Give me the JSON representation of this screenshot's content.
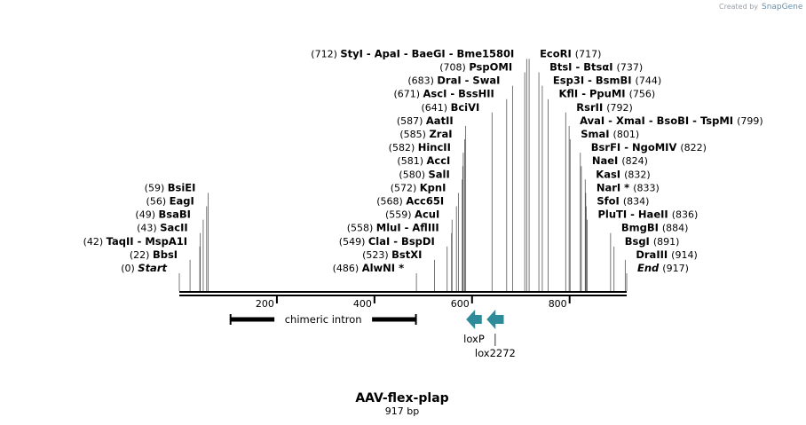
{
  "credit": {
    "prefix": "Created by",
    "brand": "SnapGene"
  },
  "title": "AAV-flex-plap",
  "subtitle": "917 bp",
  "sequence_length": 917,
  "ticks": [
    "200",
    "400",
    "600",
    "800"
  ],
  "tick_positions": [
    200,
    400,
    600,
    800
  ],
  "features": [
    {
      "label": "chimeric intron",
      "start": 105,
      "end": 485,
      "kind": "bar"
    },
    {
      "label": "loxP",
      "start": 588,
      "end": 620,
      "kind": "arrow-left"
    },
    {
      "label": "lox2272",
      "start": 630,
      "end": 665,
      "kind": "arrow-left"
    }
  ],
  "sites": [
    {
      "pos": "(0)",
      "text": "Start",
      "bp": 0,
      "side": "left",
      "italic": true
    },
    {
      "pos": "(22)",
      "text": "BbsI",
      "bp": 22,
      "side": "left"
    },
    {
      "pos": "(42)",
      "text": "TaqII  - MspA1I",
      "bp": 42,
      "side": "left"
    },
    {
      "pos": "(43)",
      "text": "SacII",
      "bp": 43,
      "side": "left"
    },
    {
      "pos": "(49)",
      "text": "BsaBI",
      "bp": 49,
      "side": "left"
    },
    {
      "pos": "(56)",
      "text": "EagI",
      "bp": 56,
      "side": "left"
    },
    {
      "pos": "(59)",
      "text": "BsiEI",
      "bp": 59,
      "side": "left"
    },
    {
      "pos": "(486)",
      "text": "AlwNI *",
      "bp": 486,
      "side": "left"
    },
    {
      "pos": "(523)",
      "text": "BstXI",
      "bp": 523,
      "side": "left"
    },
    {
      "pos": "(549)",
      "text": "ClaI  - BspDI",
      "bp": 549,
      "side": "left"
    },
    {
      "pos": "(558)",
      "text": "MluI  - AflIII",
      "bp": 558,
      "side": "left"
    },
    {
      "pos": "(559)",
      "text": "AcuI",
      "bp": 559,
      "side": "left"
    },
    {
      "pos": "(568)",
      "text": "Acc65I",
      "bp": 568,
      "side": "left"
    },
    {
      "pos": "(572)",
      "text": "KpnI",
      "bp": 572,
      "side": "left"
    },
    {
      "pos": "(580)",
      "text": "SalI",
      "bp": 580,
      "side": "left"
    },
    {
      "pos": "(581)",
      "text": "AccI",
      "bp": 581,
      "side": "left"
    },
    {
      "pos": "(582)",
      "text": "HincII",
      "bp": 582,
      "side": "left"
    },
    {
      "pos": "(585)",
      "text": "ZraI",
      "bp": 585,
      "side": "left"
    },
    {
      "pos": "(587)",
      "text": "AatII",
      "bp": 587,
      "side": "left"
    },
    {
      "pos": "(641)",
      "text": "BciVI",
      "bp": 641,
      "side": "left"
    },
    {
      "pos": "(671)",
      "text": "AscI  - BssHII",
      "bp": 671,
      "side": "left"
    },
    {
      "pos": "(683)",
      "text": "DraI  - SwaI",
      "bp": 683,
      "side": "left"
    },
    {
      "pos": "(708)",
      "text": "PspOMI",
      "bp": 708,
      "side": "left"
    },
    {
      "pos": "(712)",
      "text": "StyI  - ApaI  - BaeGI  - Bme1580I",
      "bp": 712,
      "side": "left"
    },
    {
      "pos": "(717)",
      "text": "EcoRI",
      "bp": 717,
      "side": "right"
    },
    {
      "pos": "(737)",
      "text": "BtsI  - BtsαI",
      "bp": 737,
      "side": "right"
    },
    {
      "pos": "(744)",
      "text": "Esp3I  - BsmBI",
      "bp": 744,
      "side": "right"
    },
    {
      "pos": "(756)",
      "text": "KflI  - PpuMI",
      "bp": 756,
      "side": "right"
    },
    {
      "pos": "(792)",
      "text": "RsrII",
      "bp": 792,
      "side": "right"
    },
    {
      "pos": "(799)",
      "text": "AvaI  - XmaI  - BsoBI  - TspMI",
      "bp": 799,
      "side": "right"
    },
    {
      "pos": "(801)",
      "text": "SmaI",
      "bp": 801,
      "side": "right"
    },
    {
      "pos": "(822)",
      "text": "BsrFI  - NgoMIV",
      "bp": 822,
      "side": "right"
    },
    {
      "pos": "(824)",
      "text": "NaeI",
      "bp": 824,
      "side": "right"
    },
    {
      "pos": "(832)",
      "text": "KasI",
      "bp": 832,
      "side": "right"
    },
    {
      "pos": "(833)",
      "text": "NarI *",
      "bp": 833,
      "side": "right"
    },
    {
      "pos": "(834)",
      "text": "SfoI",
      "bp": 834,
      "side": "right"
    },
    {
      "pos": "(836)",
      "text": "PluTI  - HaeII",
      "bp": 836,
      "side": "right"
    },
    {
      "pos": "(884)",
      "text": "BmgBI",
      "bp": 884,
      "side": "right"
    },
    {
      "pos": "(891)",
      "text": "BsgI",
      "bp": 891,
      "side": "right"
    },
    {
      "pos": "(914)",
      "text": "DraIII",
      "bp": 914,
      "side": "right"
    },
    {
      "pos": "(917)",
      "text": "End",
      "bp": 917,
      "side": "right",
      "italic": true
    }
  ],
  "colors": {
    "feature_arrow": "#2e8b9a",
    "credit_text": "#9aa0a6"
  }
}
